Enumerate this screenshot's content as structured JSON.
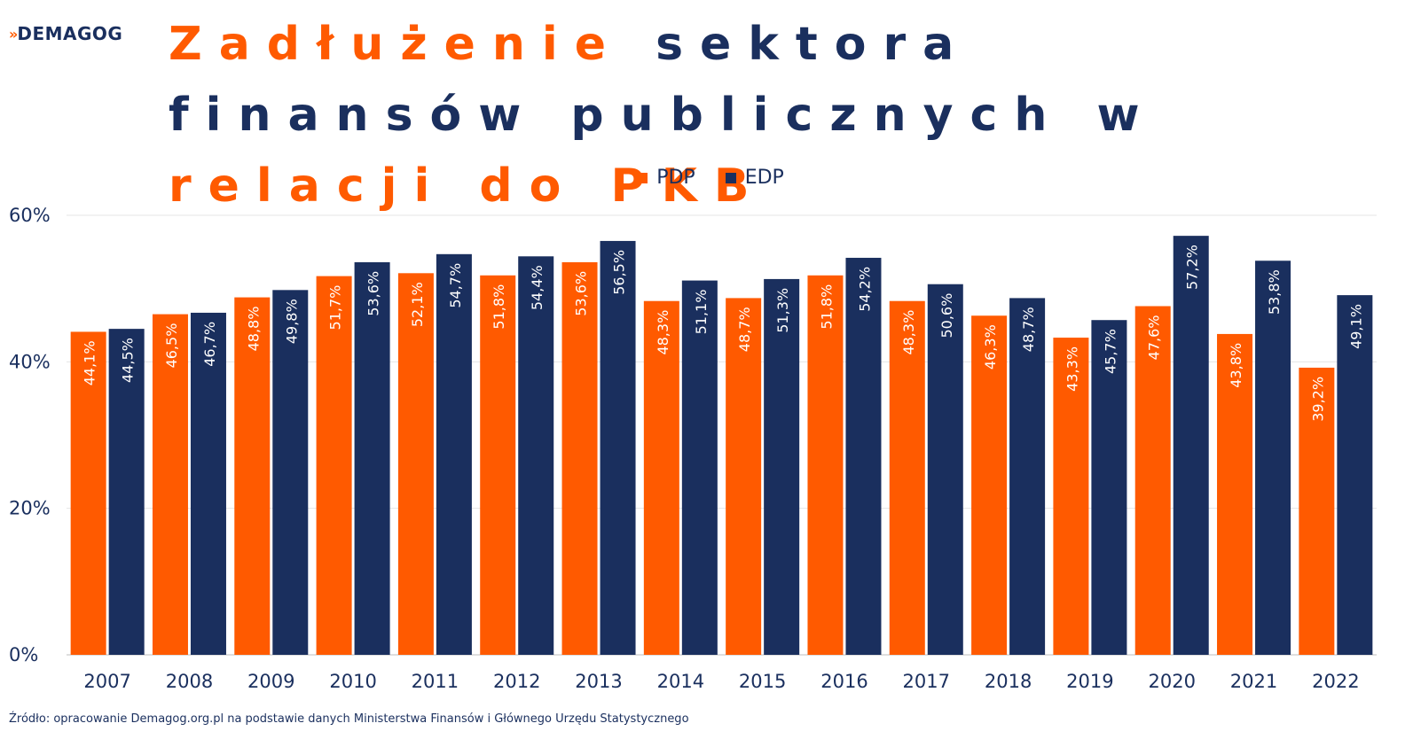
{
  "logo": {
    "icon": "»",
    "text": "DEMAGOG"
  },
  "title": {
    "part1": "Zadłużenie",
    "part2": " sektora finansów publicznych w ",
    "part3": "relacji do PKB"
  },
  "colors": {
    "pdp": "#ff5a00",
    "edp": "#1a2f5e",
    "grid": "#e4e4e4",
    "text": "#1a2f5e"
  },
  "source": "Źródło: opracowanie Demagog.org.pl na podstawie danych Ministerstwa Finansów i Głównego Urzędu Statystycznego",
  "chart_data": {
    "type": "bar",
    "title": "Zadłużenie sektora finansów publicznych w relacji do PKB",
    "categories": [
      "2007",
      "2008",
      "2009",
      "2010",
      "2011",
      "2012",
      "2013",
      "2014",
      "2015",
      "2016",
      "2017",
      "2018",
      "2019",
      "2020",
      "2021",
      "2022"
    ],
    "series": [
      {
        "name": "PDP",
        "color": "#ff5a00",
        "values": [
          44.1,
          46.5,
          48.8,
          51.7,
          52.1,
          51.8,
          53.6,
          48.3,
          48.7,
          51.8,
          48.3,
          46.3,
          43.3,
          47.6,
          43.8,
          39.2
        ],
        "labels": [
          "44,1%",
          "46,5%",
          "48,8%",
          "51,7%",
          "52,1%",
          "51,8%",
          "53,6%",
          "48,3%",
          "48,7%",
          "51,8%",
          "48,3%",
          "46,3%",
          "43,3%",
          "47,6%",
          "43,8%",
          "39,2%"
        ]
      },
      {
        "name": "EDP",
        "color": "#1a2f5e",
        "values": [
          44.5,
          46.7,
          49.8,
          53.6,
          54.7,
          54.4,
          56.5,
          51.1,
          51.3,
          54.2,
          50.6,
          48.7,
          45.7,
          57.2,
          53.8,
          49.1
        ],
        "labels": [
          "44,5%",
          "46,7%",
          "49,8%",
          "53,6%",
          "54,7%",
          "54,4%",
          "56,5%",
          "51,1%",
          "51,3%",
          "54,2%",
          "50,6%",
          "48,7%",
          "45,7%",
          "57,2%",
          "53,8%",
          "49,1%"
        ]
      }
    ],
    "ylim": [
      0,
      60
    ],
    "yticks": [
      0,
      20,
      40,
      60
    ],
    "ytick_labels": [
      "0%",
      "20%",
      "40%",
      "60%"
    ],
    "grid": true,
    "legend_position": "top-center"
  }
}
